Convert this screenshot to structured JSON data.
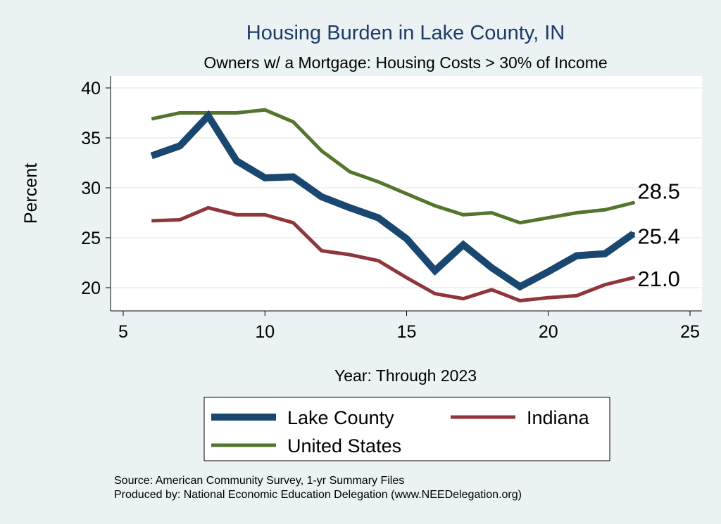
{
  "chart_data": {
    "type": "line",
    "title": "Housing Burden in Lake County, IN",
    "subtitle": "Owners w/ a Mortgage: Housing Costs > 30% of Income",
    "xlabel": "Year: Through 2023",
    "ylabel": "Percent",
    "xlim": [
      5,
      25
    ],
    "ylim": [
      20,
      40
    ],
    "xticks": [
      5,
      10,
      15,
      20,
      25
    ],
    "yticks": [
      20,
      25,
      30,
      35,
      40
    ],
    "grid": "horizontal",
    "legend_position": "bottom",
    "x": [
      6,
      7,
      8,
      9,
      10,
      11,
      12,
      13,
      14,
      15,
      16,
      17,
      18,
      19,
      20,
      21,
      22,
      23
    ],
    "series": [
      {
        "name": "Lake County",
        "color": "#1A476F",
        "values": [
          33.2,
          34.2,
          37.2,
          32.7,
          31.0,
          31.1,
          29.1,
          28.0,
          27.0,
          24.9,
          21.7,
          24.3,
          22.0,
          20.1,
          21.6,
          23.2,
          23.4,
          25.4
        ],
        "end_label": "25.4"
      },
      {
        "name": "Indiana",
        "color": "#90353B",
        "values": [
          26.7,
          26.8,
          28.0,
          27.3,
          27.3,
          26.5,
          23.7,
          23.3,
          22.7,
          21.0,
          19.4,
          18.9,
          19.8,
          18.7,
          19.0,
          19.2,
          20.3,
          21.0
        ],
        "end_label": "21.0"
      },
      {
        "name": "United States",
        "color": "#55752F",
        "values": [
          36.9,
          37.5,
          37.5,
          37.5,
          37.8,
          36.6,
          33.7,
          31.6,
          30.6,
          29.4,
          28.2,
          27.3,
          27.5,
          26.5,
          27.0,
          27.5,
          27.8,
          28.5
        ],
        "end_label": "28.5"
      }
    ],
    "notes": [
      "Source: American Community Survey, 1-yr Summary Files",
      "Produced by: National Economic Education Delegation (www.NEEDelegation.org)"
    ]
  }
}
